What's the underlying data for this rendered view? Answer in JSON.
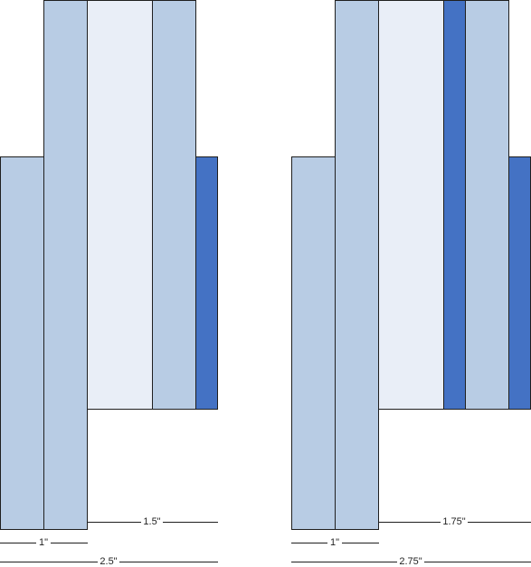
{
  "diagrams": [
    {
      "dimensions": [
        "1.5\"",
        "1\"",
        "2.5\""
      ]
    },
    {
      "dimensions": [
        "1.75\"",
        "1\"",
        "2.75\""
      ]
    }
  ]
}
